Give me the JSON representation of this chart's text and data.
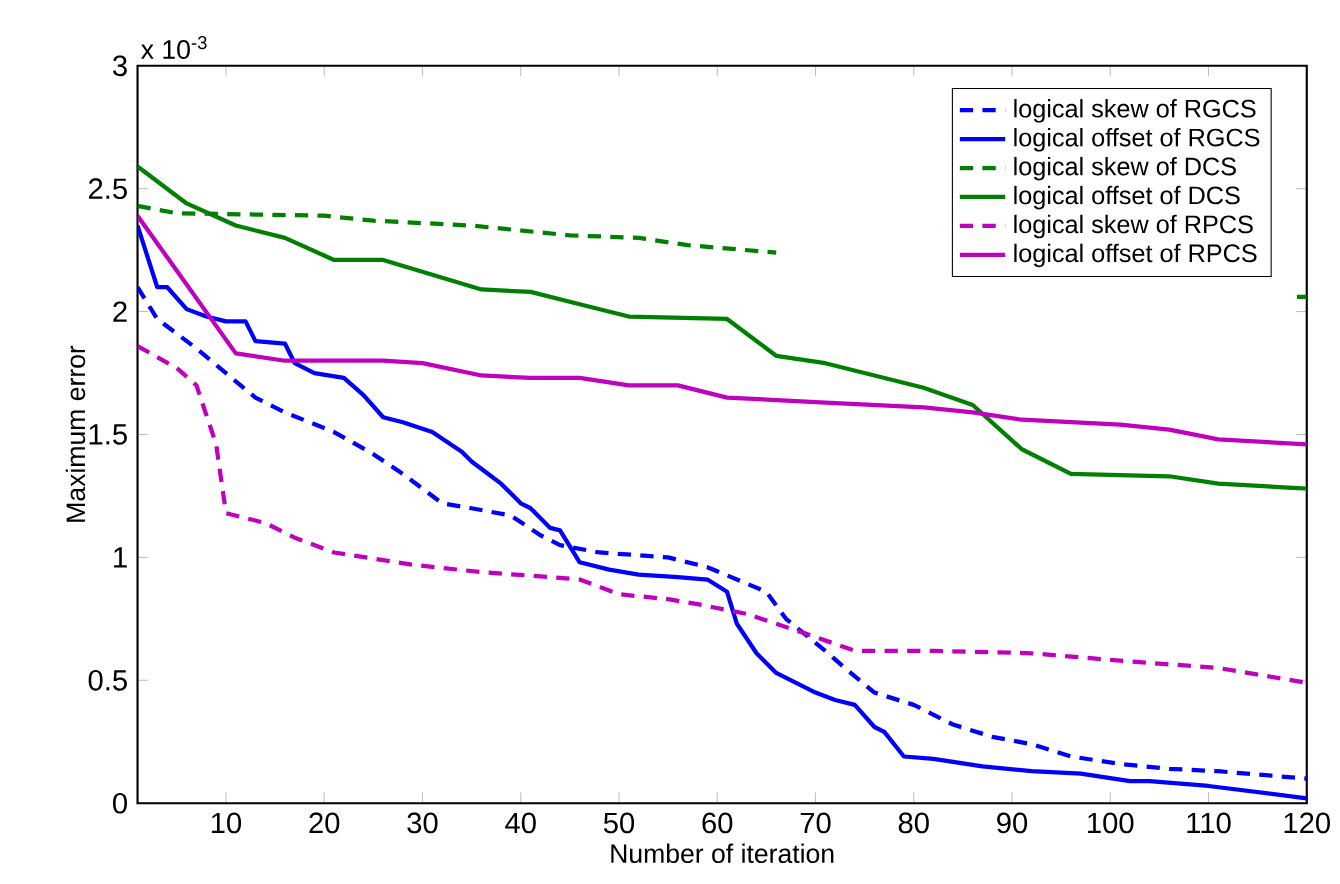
{
  "chart_data": {
    "type": "line",
    "xlabel": "Number of iteration",
    "ylabel": "Maximum error",
    "annotations": [
      "x 10$^{-3}$"
    ],
    "xlim": [
      1,
      120
    ],
    "ylim": [
      0,
      3
    ],
    "xticks": [
      10,
      20,
      30,
      40,
      50,
      60,
      70,
      80,
      90,
      100,
      110,
      120
    ],
    "yticks": [
      0,
      0.5,
      1,
      1.5,
      2,
      2.5,
      3
    ],
    "legend": "top right",
    "grid": false,
    "marker": "none",
    "series": [
      {
        "name": "logical skew of RGCS",
        "color": "#0000ff",
        "line_style": "dashed",
        "x": [
          1,
          3,
          7,
          10,
          13,
          16,
          21,
          25,
          28,
          32,
          35,
          39,
          42,
          44,
          48,
          55,
          59,
          65,
          67,
          71,
          73,
          76,
          80,
          84,
          88,
          92,
          96,
          101,
          106,
          111,
          120
        ],
        "values": [
          2.1,
          1.97,
          1.85,
          1.75,
          1.65,
          1.59,
          1.51,
          1.42,
          1.34,
          1.22,
          1.2,
          1.17,
          1.09,
          1.05,
          1.02,
          1.0,
          0.96,
          0.86,
          0.75,
          0.62,
          0.55,
          0.45,
          0.4,
          0.32,
          0.27,
          0.24,
          0.19,
          0.16,
          0.14,
          0.13,
          0.1
        ]
      },
      {
        "name": "logical offset of RGCS",
        "color": "#0000ff",
        "line_style": "solid",
        "x": [
          1,
          3,
          4,
          6,
          8,
          10,
          12,
          13,
          16,
          17,
          19,
          22,
          24,
          26,
          28,
          31,
          34,
          35,
          37,
          38,
          40,
          41,
          43,
          44,
          46,
          47,
          49,
          52,
          56,
          59,
          61,
          62,
          64,
          66,
          68,
          70,
          72,
          74,
          76,
          77,
          79,
          82,
          87,
          92,
          97,
          102,
          104,
          110,
          120
        ],
        "values": [
          2.35,
          2.1,
          2.1,
          2.01,
          1.98,
          1.96,
          1.96,
          1.88,
          1.87,
          1.79,
          1.75,
          1.73,
          1.66,
          1.57,
          1.55,
          1.51,
          1.43,
          1.39,
          1.33,
          1.3,
          1.22,
          1.2,
          1.12,
          1.11,
          0.98,
          0.97,
          0.95,
          0.93,
          0.92,
          0.91,
          0.86,
          0.73,
          0.61,
          0.53,
          0.49,
          0.45,
          0.42,
          0.4,
          0.31,
          0.29,
          0.19,
          0.18,
          0.15,
          0.13,
          0.12,
          0.09,
          0.09,
          0.07,
          0.02
        ]
      },
      {
        "name": "logical skew of DCS",
        "color": "#008000",
        "line_style": "dashed",
        "x": [
          1,
          5,
          20,
          25,
          35,
          45,
          52,
          57,
          66,
          90,
          119,
          120
        ],
        "values": [
          2.43,
          2.4,
          2.39,
          2.37,
          2.35,
          2.31,
          2.3,
          2.27,
          2.24,
          null,
          2.06,
          2.06
        ]
      },
      {
        "name": "logical offset of DCS",
        "color": "#008000",
        "line_style": "solid",
        "x": [
          1,
          6,
          11,
          16,
          21,
          26,
          31,
          36,
          41,
          46,
          51,
          61,
          66,
          71,
          76,
          81,
          86,
          91,
          96,
          106,
          111,
          120
        ],
        "values": [
          2.59,
          2.44,
          2.35,
          2.3,
          2.21,
          2.21,
          2.15,
          2.09,
          2.08,
          2.03,
          1.98,
          1.97,
          1.82,
          1.79,
          1.74,
          1.69,
          1.62,
          1.44,
          1.34,
          1.33,
          1.3,
          1.28
        ]
      },
      {
        "name": "logical skew of RPCS",
        "color": "#bf00bf",
        "line_style": "dashed",
        "x": [
          1,
          5,
          7,
          9,
          10,
          14,
          17,
          21,
          29,
          36,
          43,
          46,
          50,
          55,
          58,
          63,
          69,
          74,
          82,
          92,
          101,
          111,
          120
        ],
        "values": [
          1.86,
          1.77,
          1.7,
          1.46,
          1.18,
          1.14,
          1.08,
          1.02,
          0.97,
          0.94,
          0.92,
          0.91,
          0.85,
          0.83,
          0.81,
          0.77,
          0.69,
          0.62,
          0.62,
          0.61,
          0.58,
          0.55,
          0.49
        ]
      },
      {
        "name": "logical offset of RPCS",
        "color": "#bf00bf",
        "line_style": "solid",
        "x": [
          1,
          11,
          16,
          26,
          30,
          36,
          41,
          46,
          51,
          56,
          61,
          71,
          81,
          86,
          91,
          101,
          106,
          111,
          120
        ],
        "values": [
          2.39,
          1.83,
          1.8,
          1.8,
          1.79,
          1.74,
          1.73,
          1.73,
          1.7,
          1.7,
          1.65,
          1.63,
          1.61,
          1.59,
          1.56,
          1.54,
          1.52,
          1.48,
          1.46
        ]
      }
    ]
  }
}
